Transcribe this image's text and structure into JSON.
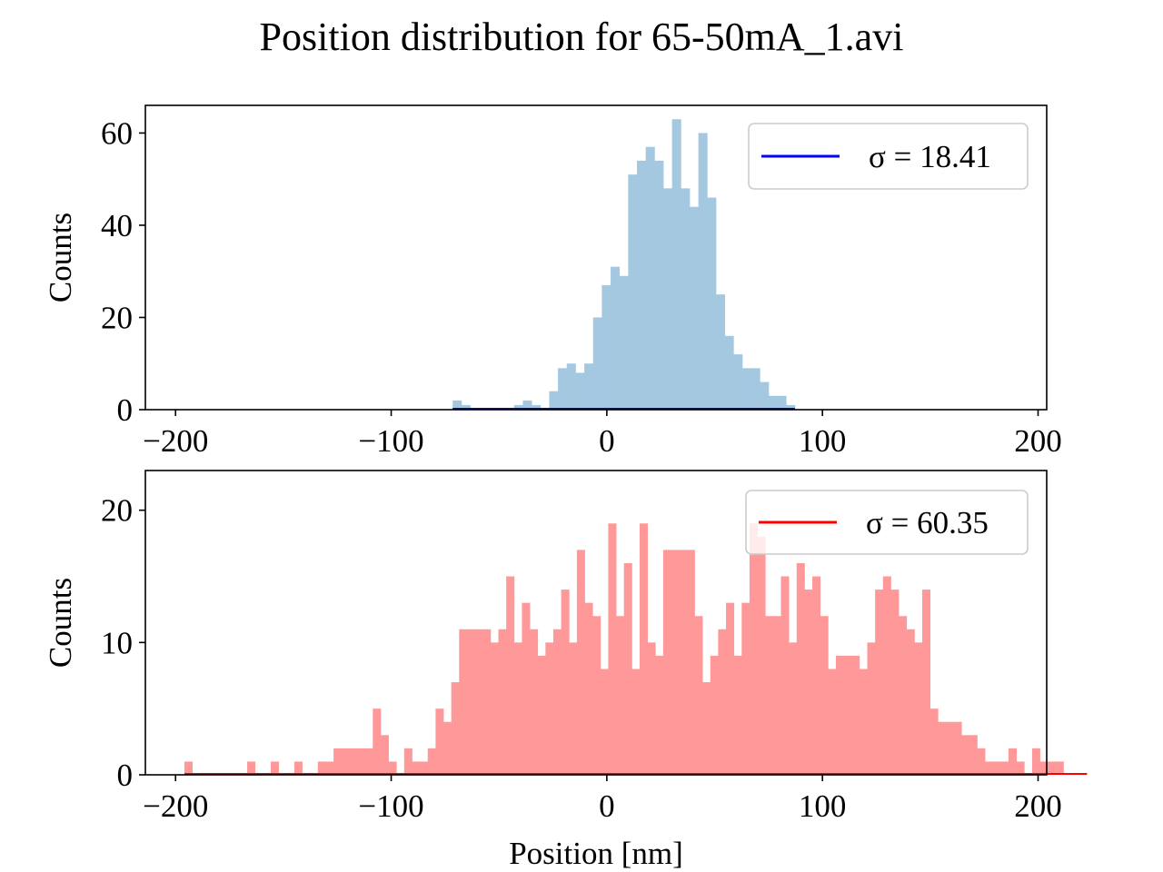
{
  "title": "Position distribution for 65-50mA_1.avi",
  "chart_data": [
    {
      "type": "bar",
      "panel": "top",
      "ylabel": "Counts",
      "xlabel": "",
      "xlim": [
        -214,
        204
      ],
      "ylim": [
        0,
        66
      ],
      "xticks": [
        -200,
        -100,
        0,
        100,
        200
      ],
      "xtick_labels": [
        "−200",
        "−100",
        "0",
        "100",
        "200"
      ],
      "yticks": [
        0,
        20,
        40,
        60
      ],
      "ytick_labels": [
        "0",
        "20",
        "40",
        "60"
      ],
      "bar_color": "#a5c8e1",
      "bin_start": -71.5,
      "bin_width": 4.07,
      "values": [
        2,
        1,
        0,
        0,
        0,
        0,
        0,
        1,
        2,
        1,
        0,
        4,
        9,
        10,
        8,
        10,
        20,
        27,
        31,
        29,
        51,
        54,
        57,
        54,
        48,
        63,
        48,
        44,
        60,
        46,
        25,
        16,
        12,
        9,
        9,
        6,
        3,
        3,
        1
      ],
      "legend": {
        "label": "σ = 18.41",
        "line_color": "#0000ff",
        "position": "upper right"
      }
    },
    {
      "type": "bar",
      "panel": "bottom",
      "ylabel": "Counts",
      "xlabel": "Position [nm]",
      "xlim": [
        -214,
        204
      ],
      "ylim": [
        0,
        23
      ],
      "xticks": [
        -200,
        -100,
        0,
        100,
        200
      ],
      "xtick_labels": [
        "−200",
        "−100",
        "0",
        "100",
        "200"
      ],
      "yticks": [
        0,
        10,
        20
      ],
      "ytick_labels": [
        "0",
        "10",
        "20"
      ],
      "bar_color": "#ff9999",
      "bin_start": -195.9,
      "bin_width": 3.64,
      "values": [
        1,
        0,
        0,
        0,
        0,
        0,
        0,
        0,
        1,
        0,
        0,
        1,
        0,
        0,
        1,
        0,
        0,
        1,
        1,
        2,
        2,
        2,
        2,
        2,
        5,
        3,
        1,
        0,
        2,
        1,
        1,
        2,
        5,
        4,
        7,
        11,
        11,
        11,
        11,
        10,
        11,
        15,
        10,
        13,
        11,
        9,
        10,
        11,
        14,
        10,
        17,
        13,
        12,
        8,
        19,
        12,
        16,
        8,
        19,
        10,
        9,
        17,
        17,
        17,
        17,
        12,
        7,
        9,
        11,
        13,
        9,
        13,
        19,
        18,
        12,
        12,
        15,
        10,
        16,
        14,
        15,
        12,
        8,
        9,
        9,
        9,
        8,
        10,
        14,
        15,
        14,
        12,
        11,
        10,
        14,
        5,
        4,
        4,
        4,
        3,
        3,
        2,
        1,
        1,
        1,
        2,
        1,
        0,
        2,
        1,
        1,
        1,
        0,
        0,
        0
      ],
      "legend": {
        "label": "σ = 60.35",
        "line_color": "#ff0000",
        "position": "upper right"
      }
    }
  ]
}
